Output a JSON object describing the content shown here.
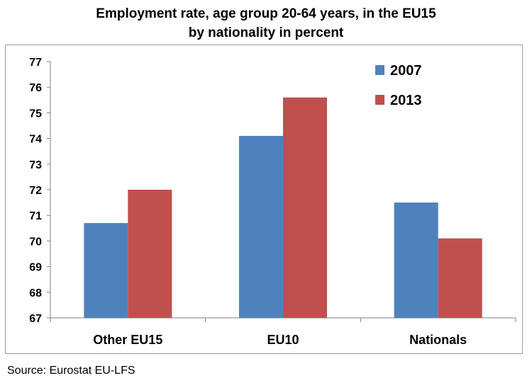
{
  "chart_data": {
    "type": "bar",
    "title_lines": [
      "Employment rate, age group 20-64 years, in the EU15",
      "by nationality in percent"
    ],
    "categories": [
      "Other EU15",
      "EU10",
      "Nationals"
    ],
    "series": [
      {
        "name": "2007",
        "color": "#4F81BD",
        "values": [
          70.7,
          74.1,
          71.5
        ]
      },
      {
        "name": "2013",
        "color": "#C0504D",
        "values": [
          72.0,
          75.6,
          70.1
        ]
      }
    ],
    "xlabel": "",
    "ylabel": "",
    "ylim": [
      67,
      77
    ],
    "yticks": [
      67,
      68,
      69,
      70,
      71,
      72,
      73,
      74,
      75,
      76,
      77
    ],
    "grid": false,
    "legend_position": "top-right"
  },
  "source": "Source: Eurostat EU-LFS"
}
